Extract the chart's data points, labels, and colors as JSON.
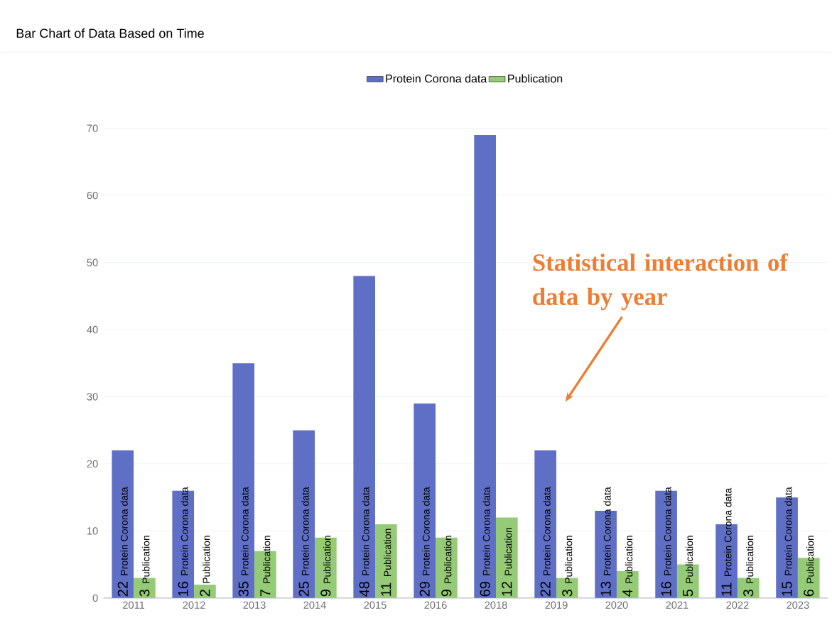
{
  "chart_data": {
    "type": "bar",
    "title": "Bar Chart of Data Based on Time",
    "categories": [
      "2011",
      "2012",
      "2013",
      "2014",
      "2015",
      "2016",
      "2018",
      "2019",
      "2020",
      "2021",
      "2022",
      "2023"
    ],
    "series": [
      {
        "name": "Protein Corona data",
        "color": "#5f6fc6",
        "values": [
          22,
          16,
          35,
          25,
          48,
          29,
          69,
          22,
          13,
          16,
          11,
          15
        ]
      },
      {
        "name": "Publication",
        "color": "#95ca77",
        "values": [
          3,
          2,
          7,
          9,
          11,
          9,
          12,
          3,
          4,
          5,
          3,
          6
        ]
      }
    ],
    "ylim": [
      0,
      70
    ],
    "yticks": [
      0,
      10,
      20,
      30,
      40,
      50,
      60,
      70
    ],
    "grid": "y",
    "legend": "top",
    "data_labels": true,
    "annotations": [
      "Statistical interaction of data by year"
    ]
  }
}
